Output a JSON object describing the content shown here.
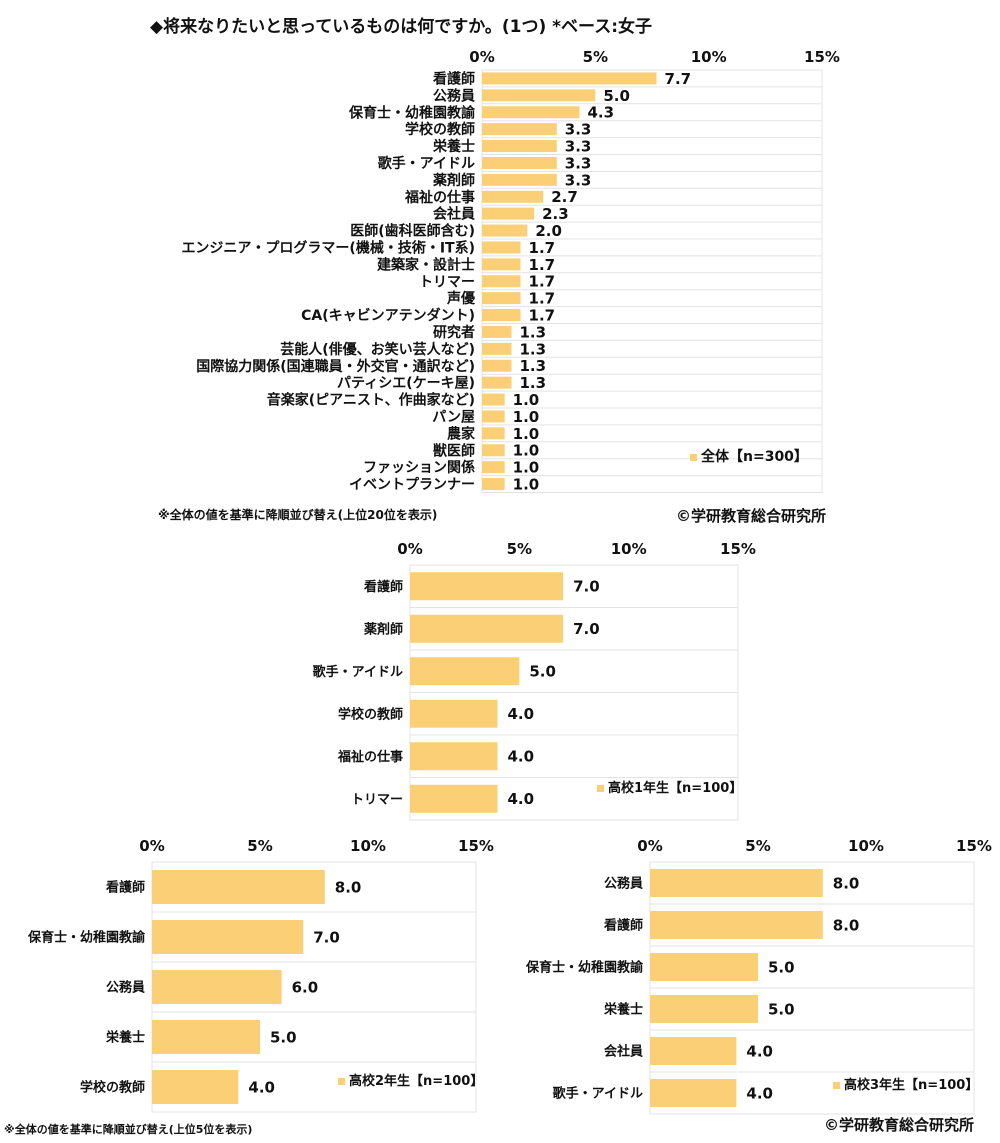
{
  "title": "◆将来なりたいと思っているものは何ですか。(1つ)  *ベース:女子",
  "note_top": "※全体の値を基準に降順並び替え(上位20位を表示)",
  "note_bottom": "※全体の値を基準に降順並び替え(上位5位を表示)",
  "copyright": "©学研教育総合研究所",
  "colors": {
    "bar": "#fbcf75",
    "grid": "#e3e3e3",
    "text": "#111111"
  },
  "chart_data": [
    {
      "type": "bar",
      "orientation": "horizontal",
      "legend": "全体【n=300】",
      "xlim": [
        0,
        15
      ],
      "ticks": [
        "0%",
        "5%",
        "10%",
        "15%"
      ],
      "categories": [
        "看護師",
        "公務員",
        "保育士・幼稚園教諭",
        "学校の教師",
        "栄養士",
        "歌手・アイドル",
        "薬剤師",
        "福祉の仕事",
        "会社員",
        "医師(歯科医師含む)",
        "エンジニア・プログラマー(機械・技術・IT系)",
        "建築家・設計士",
        "トリマー",
        "声優",
        "CA(キャビンアテンダント)",
        "研究者",
        "芸能人(俳優、お笑い芸人など)",
        "国際協力関係(国連職員・外交官・通訳など)",
        "パティシエ(ケーキ屋)",
        "音楽家(ピアニスト、作曲家など)",
        "パン屋",
        "農家",
        "獣医師",
        "ファッション関係",
        "イベントプランナー"
      ],
      "values": [
        7.7,
        5.0,
        4.3,
        3.3,
        3.3,
        3.3,
        3.3,
        2.7,
        2.3,
        2.0,
        1.7,
        1.7,
        1.7,
        1.7,
        1.7,
        1.3,
        1.3,
        1.3,
        1.3,
        1.0,
        1.0,
        1.0,
        1.0,
        1.0,
        1.0
      ],
      "labels": [
        "7.7",
        "5.0",
        "4.3",
        "3.3",
        "3.3",
        "3.3",
        "3.3",
        "2.7",
        "2.3",
        "2.0",
        "1.7",
        "1.7",
        "1.7",
        "1.7",
        "1.7",
        "1.3",
        "1.3",
        "1.3",
        "1.3",
        "1.0",
        "1.0",
        "1.0",
        "1.0",
        "1.0",
        "1.0"
      ]
    },
    {
      "type": "bar",
      "orientation": "horizontal",
      "legend": "高校1年生【n=100】",
      "xlim": [
        0,
        15
      ],
      "ticks": [
        "0%",
        "5%",
        "10%",
        "15%"
      ],
      "categories": [
        "看護師",
        "薬剤師",
        "歌手・アイドル",
        "学校の教師",
        "福祉の仕事",
        "トリマー"
      ],
      "values": [
        7.0,
        7.0,
        5.0,
        4.0,
        4.0,
        4.0
      ],
      "labels": [
        "7.0",
        "7.0",
        "5.0",
        "4.0",
        "4.0",
        "4.0"
      ]
    },
    {
      "type": "bar",
      "orientation": "horizontal",
      "legend": "高校2年生【n=100】",
      "xlim": [
        0,
        15
      ],
      "ticks": [
        "0%",
        "5%",
        "10%",
        "15%"
      ],
      "categories": [
        "看護師",
        "保育士・幼稚園教諭",
        "公務員",
        "栄養士",
        "学校の教師"
      ],
      "values": [
        8.0,
        7.0,
        6.0,
        5.0,
        4.0
      ],
      "labels": [
        "8.0",
        "7.0",
        "6.0",
        "5.0",
        "4.0"
      ]
    },
    {
      "type": "bar",
      "orientation": "horizontal",
      "legend": "高校3年生【n=100】",
      "xlim": [
        0,
        15
      ],
      "ticks": [
        "0%",
        "5%",
        "10%",
        "15%"
      ],
      "categories": [
        "公務員",
        "看護師",
        "保育士・幼稚園教諭",
        "栄養士",
        "会社員",
        "歌手・アイドル"
      ],
      "values": [
        8.0,
        8.0,
        5.0,
        5.0,
        4.0,
        4.0
      ],
      "labels": [
        "8.0",
        "8.0",
        "5.0",
        "5.0",
        "4.0",
        "4.0"
      ]
    }
  ]
}
